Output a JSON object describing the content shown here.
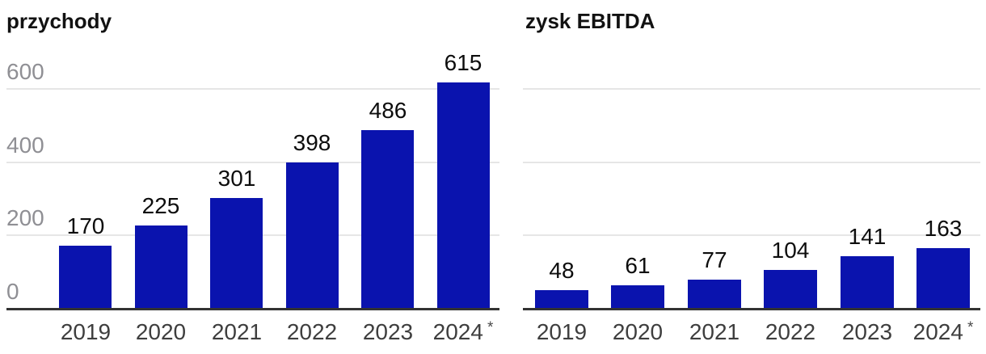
{
  "figure": {
    "background": "#ffffff"
  },
  "style": {
    "bar_color": "#0a13ae",
    "grid_color": "#e6e6e6",
    "axis_color": "#333333",
    "ytick_color": "#8f8f94",
    "xtick_color": "#3e3e3e",
    "value_label_color": "#0d0d0d",
    "title_color": "#121212"
  },
  "chart_data": [
    {
      "type": "bar",
      "title": "przychody",
      "categories": [
        "2019",
        "2020",
        "2021",
        "2022",
        "2023",
        "2024"
      ],
      "values": [
        170,
        225,
        301,
        398,
        486,
        615
      ],
      "footnote_marker": "*",
      "footnote_marker_on_last_category": true,
      "ylim": [
        0,
        660
      ],
      "yticks": [
        0,
        200,
        400,
        600
      ],
      "ytick_labels": [
        "0",
        "200",
        "400",
        "600"
      ],
      "show_ytick_labels": true,
      "grid": true,
      "legend": "none",
      "value_labels_above_bars": true
    },
    {
      "type": "bar",
      "title": "zysk EBITDA",
      "categories": [
        "2019",
        "2020",
        "2021",
        "2022",
        "2023",
        "2024"
      ],
      "values": [
        48,
        61,
        77,
        104,
        141,
        163
      ],
      "footnote_marker": "*",
      "footnote_marker_on_last_category": true,
      "ylim": [
        0,
        660
      ],
      "yticks": [
        200,
        400,
        600
      ],
      "ytick_labels": [],
      "show_ytick_labels": false,
      "grid": true,
      "legend": "none",
      "value_labels_above_bars": true
    }
  ]
}
